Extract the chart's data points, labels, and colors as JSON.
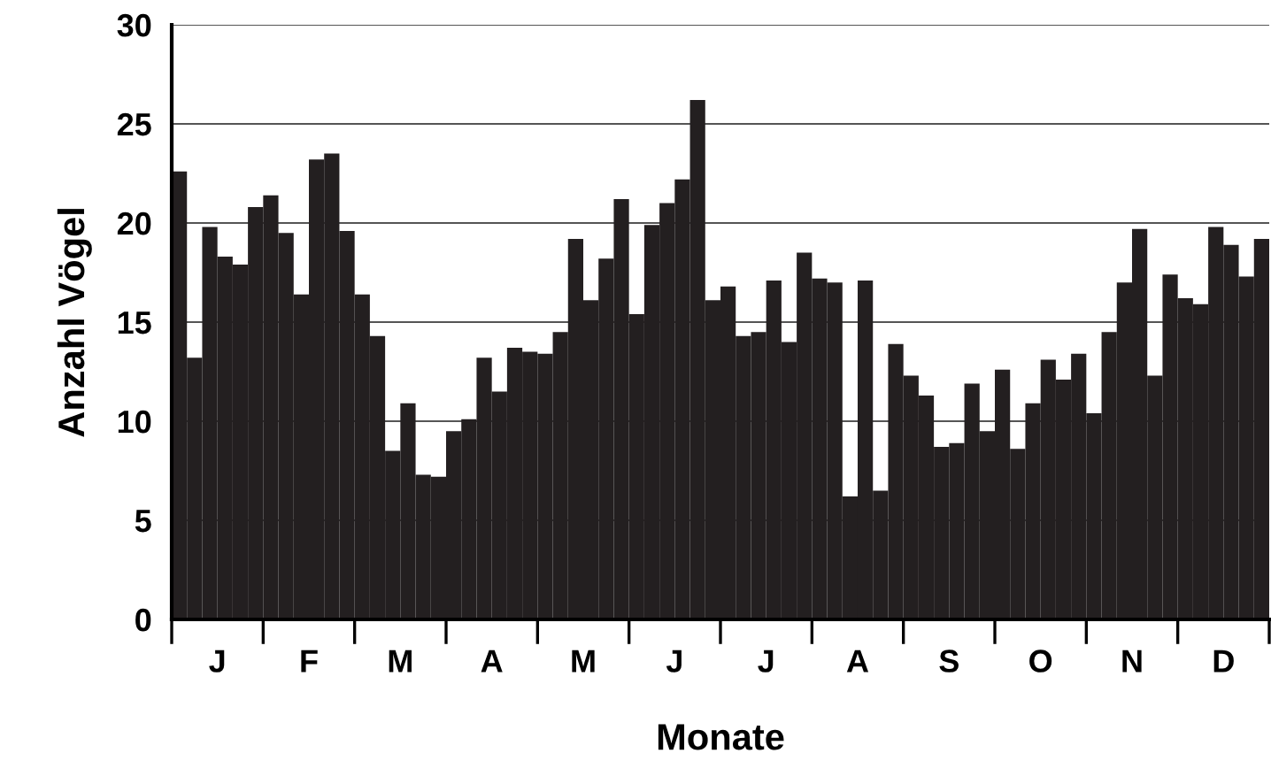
{
  "chart_data": {
    "type": "bar",
    "xlabel": "Monate",
    "ylabel": "Anzahl Vögel",
    "color": "#231f20",
    "categories": [
      null,
      null,
      null,
      "J",
      null,
      null,
      null,
      null,
      null,
      "F",
      null,
      null,
      null,
      null,
      null,
      "M",
      null,
      null,
      null,
      null,
      null,
      "A",
      null,
      null,
      null,
      null,
      null,
      "M",
      null,
      null,
      null,
      null,
      null,
      "J",
      null,
      null,
      null,
      null,
      null,
      "J",
      null,
      null,
      null,
      null,
      null,
      "A",
      null,
      null,
      null,
      null,
      null,
      "S",
      null,
      null,
      null,
      null,
      null,
      "O",
      null,
      null,
      null,
      null,
      null,
      "N",
      null,
      null,
      null,
      null,
      null,
      "D",
      null,
      null
    ],
    "values": [
      22.6,
      13.2,
      19.8,
      18.3,
      17.9,
      20.8,
      21.4,
      19.5,
      16.4,
      23.2,
      23.5,
      19.6,
      16.4,
      14.3,
      8.5,
      10.9,
      7.3,
      7.2,
      9.5,
      10.1,
      13.2,
      11.5,
      13.7,
      13.5,
      13.4,
      14.5,
      19.2,
      16.1,
      18.2,
      21.2,
      15.4,
      19.9,
      21.0,
      22.2,
      26.2,
      16.1,
      16.8,
      14.3,
      14.5,
      17.1,
      14.0,
      18.5,
      17.2,
      17.0,
      6.2,
      17.1,
      6.5,
      13.9,
      12.3,
      11.3,
      8.7,
      8.9,
      11.9,
      9.5,
      12.6,
      8.6,
      10.9,
      13.1,
      12.1,
      13.4,
      10.4,
      14.5,
      17.0,
      19.7,
      12.3,
      17.4,
      16.2,
      15.9,
      19.8,
      18.9,
      17.3,
      19.2
    ],
    "ylim": [
      0,
      30
    ],
    "yticks": [
      0,
      5,
      10,
      15,
      20,
      25,
      30
    ],
    "grid": "y"
  }
}
